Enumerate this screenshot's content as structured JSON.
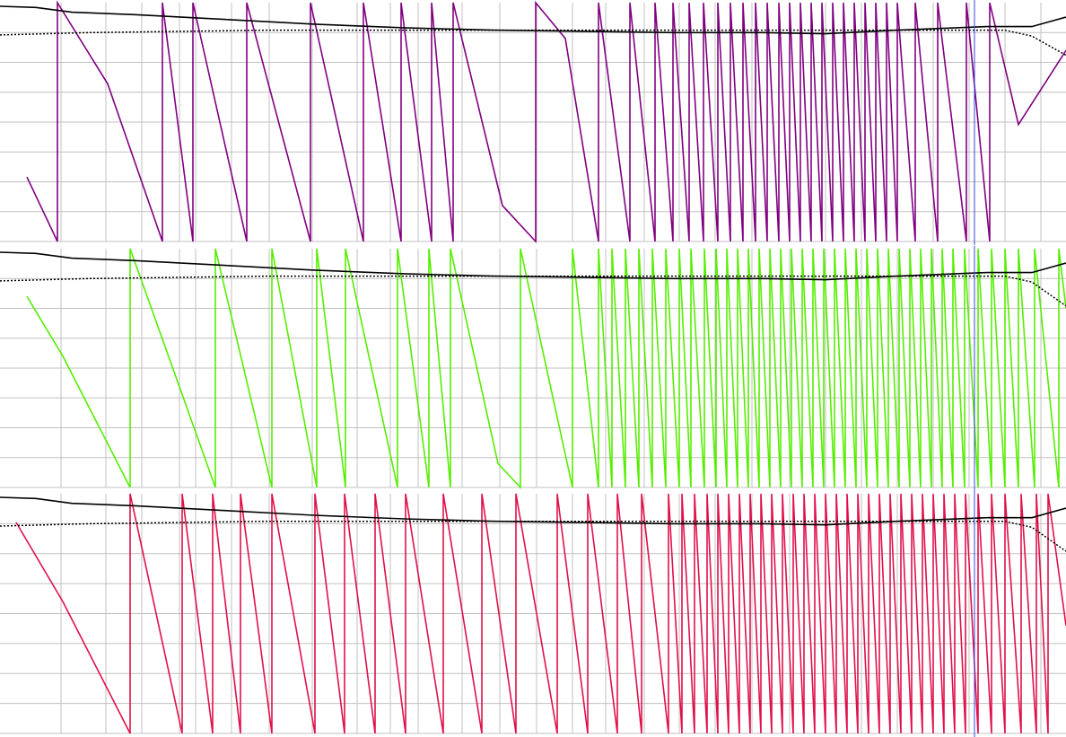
{
  "chart_data": [
    {
      "type": "line",
      "xlim": [
        0,
        1188
      ],
      "ylim": [
        0,
        1
      ],
      "grid": true,
      "grid_color": "#c0c0c0",
      "xticks": [
        68,
        118,
        158,
        200,
        218,
        258,
        300,
        348,
        398,
        435,
        466,
        515,
        557,
        598,
        638,
        675,
        718,
        757,
        797,
        838,
        880,
        920,
        960,
        1000,
        1040,
        1080,
        1120,
        1160
      ],
      "yticks": [
        0,
        0.125,
        0.25,
        0.375,
        0.5,
        0.625,
        0.75,
        0.875
      ],
      "vline": 1086,
      "vline_color": "#3344dd",
      "series": [
        {
          "color": "#800080",
          "style": "solid",
          "x": [
            30,
            64,
            64,
            120,
            181,
            181,
            215,
            215,
            275,
            275,
            346,
            346,
            405,
            405,
            447,
            447,
            481,
            481,
            505,
            505,
            560,
            597,
            597,
            630,
            667,
            667,
            702,
            702,
            730,
            730,
            750,
            750,
            768,
            768,
            784,
            784,
            800,
            800,
            814,
            814,
            828,
            828,
            842,
            842,
            855,
            855,
            868,
            868,
            880,
            880,
            892,
            892,
            904,
            904,
            916,
            916,
            928,
            928,
            940,
            940,
            952,
            952,
            964,
            964,
            976,
            976,
            988,
            988,
            1000,
            1000,
            1020,
            1020,
            1045,
            1045,
            1077,
            1077,
            1103,
            1103,
            1135,
            1188
          ],
          "values": [
            0.27,
            0,
            1,
            0.66,
            0,
            1,
            0,
            1,
            0,
            1,
            0,
            1,
            0,
            1,
            0,
            1,
            0,
            1,
            0,
            1,
            0.15,
            0,
            1,
            0.85,
            0,
            1,
            0,
            1,
            0,
            1,
            0,
            1,
            0,
            1,
            0,
            1,
            0,
            1,
            0,
            1,
            0,
            1,
            0,
            1,
            0,
            1,
            0,
            1,
            0,
            1,
            0,
            1,
            0,
            1,
            0,
            1,
            0,
            1,
            0,
            1,
            0,
            1,
            0,
            1,
            0,
            1,
            0,
            1,
            0,
            1,
            0,
            1,
            0,
            1,
            0,
            1,
            0,
            1,
            0.49,
            0.8
          ]
        },
        {
          "color": "#000000",
          "style": "solid",
          "x": [
            0,
            40,
            80,
            150,
            250,
            350,
            450,
            550,
            650,
            750,
            850,
            920,
            1000,
            1100,
            1150,
            1188
          ],
          "values": [
            0.985,
            0.98,
            0.96,
            0.95,
            0.93,
            0.91,
            0.895,
            0.885,
            0.88,
            0.875,
            0.875,
            0.87,
            0.885,
            0.9,
            0.9,
            0.94
          ]
        },
        {
          "color": "#000000",
          "style": "dotted",
          "x": [
            0,
            100,
            300,
            1120,
            1150,
            1188
          ],
          "values": [
            0.865,
            0.875,
            0.885,
            0.885,
            0.86,
            0.78
          ]
        }
      ]
    },
    {
      "type": "line",
      "xlim": [
        0,
        1188
      ],
      "ylim": [
        0,
        1
      ],
      "grid": true,
      "grid_color": "#c0c0c0",
      "xticks": [
        68,
        118,
        158,
        200,
        218,
        258,
        300,
        348,
        398,
        435,
        466,
        515,
        557,
        598,
        638,
        675,
        718,
        757,
        797,
        838,
        880,
        920,
        960,
        1000,
        1040,
        1080,
        1120,
        1160
      ],
      "yticks": [
        0,
        0.125,
        0.25,
        0.375,
        0.5,
        0.625,
        0.75,
        0.875
      ],
      "vline": 1086,
      "vline_color": "#3344dd",
      "series": [
        {
          "color": "#55ee00",
          "style": "solid",
          "x": [
            30,
            70,
            145,
            145,
            240,
            240,
            303,
            303,
            353,
            353,
            385,
            385,
            443,
            443,
            478,
            478,
            502,
            502,
            555,
            580,
            580,
            638,
            638,
            667,
            667,
            682,
            682,
            697,
            697,
            712,
            712,
            727,
            727,
            742,
            742,
            757,
            757,
            770,
            770,
            785,
            785,
            798,
            798,
            810,
            810,
            822,
            822,
            834,
            834,
            846,
            846,
            858,
            858,
            870,
            870,
            882,
            882,
            894,
            894,
            906,
            906,
            918,
            918,
            930,
            930,
            942,
            942,
            954,
            954,
            966,
            966,
            978,
            978,
            990,
            990,
            1002,
            1002,
            1014,
            1014,
            1026,
            1026,
            1038,
            1038,
            1050,
            1050,
            1062,
            1062,
            1075,
            1075,
            1090,
            1090,
            1105,
            1105,
            1120,
            1120,
            1135,
            1135,
            1153,
            1153,
            1180,
            1180,
            1188
          ],
          "values": [
            0.8,
            0.55,
            0,
            1,
            0,
            1,
            0,
            1,
            0,
            1,
            0,
            1,
            0,
            1,
            0,
            1,
            0,
            1,
            0.1,
            0,
            1,
            0,
            1,
            0,
            1,
            0,
            1,
            0,
            1,
            0,
            1,
            0,
            1,
            0,
            1,
            0,
            1,
            0,
            1,
            0,
            1,
            0,
            1,
            0,
            1,
            0,
            1,
            0,
            1,
            0,
            1,
            0,
            1,
            0,
            1,
            0,
            1,
            0,
            1,
            0,
            1,
            0,
            1,
            0,
            1,
            0,
            1,
            0,
            1,
            0,
            1,
            0,
            1,
            0,
            1,
            0,
            1,
            0,
            1,
            0,
            1,
            0,
            1,
            0,
            1,
            0,
            1,
            0,
            1,
            0,
            1,
            0,
            1,
            0,
            1,
            0,
            1,
            0,
            1,
            0,
            1,
            0.75
          ]
        },
        {
          "color": "#000000",
          "style": "solid",
          "x": [
            0,
            40,
            80,
            150,
            250,
            350,
            450,
            550,
            650,
            750,
            850,
            920,
            1000,
            1100,
            1150,
            1188
          ],
          "values": [
            0.985,
            0.98,
            0.96,
            0.95,
            0.93,
            0.91,
            0.895,
            0.885,
            0.88,
            0.875,
            0.875,
            0.87,
            0.885,
            0.9,
            0.9,
            0.94
          ]
        },
        {
          "color": "#000000",
          "style": "dotted",
          "x": [
            0,
            100,
            300,
            1120,
            1150,
            1188
          ],
          "values": [
            0.865,
            0.875,
            0.885,
            0.885,
            0.86,
            0.76
          ]
        }
      ]
    },
    {
      "type": "line",
      "xlim": [
        0,
        1188
      ],
      "ylim": [
        0,
        1
      ],
      "grid": true,
      "grid_color": "#c0c0c0",
      "xticks": [
        68,
        118,
        158,
        200,
        218,
        258,
        300,
        348,
        398,
        435,
        466,
        515,
        557,
        598,
        638,
        675,
        718,
        757,
        797,
        838,
        880,
        920,
        960,
        1000,
        1040,
        1080,
        1120,
        1160
      ],
      "yticks": [
        0,
        0.125,
        0.25,
        0.375,
        0.5,
        0.625,
        0.75,
        0.875
      ],
      "vline": 1086,
      "vline_color": "#3344dd",
      "series": [
        {
          "color": "#e0104a",
          "style": "solid",
          "x": [
            18,
            70,
            145,
            145,
            203,
            203,
            237,
            237,
            268,
            268,
            303,
            303,
            351,
            351,
            384,
            384,
            418,
            418,
            452,
            452,
            494,
            494,
            537,
            537,
            575,
            575,
            621,
            621,
            655,
            655,
            688,
            688,
            715,
            715,
            745,
            745,
            760,
            760,
            774,
            774,
            788,
            788,
            800,
            800,
            812,
            812,
            824,
            824,
            836,
            836,
            848,
            848,
            860,
            860,
            872,
            872,
            884,
            884,
            896,
            896,
            908,
            908,
            920,
            920,
            932,
            932,
            944,
            944,
            956,
            956,
            968,
            968,
            980,
            980,
            992,
            992,
            1004,
            1004,
            1016,
            1016,
            1028,
            1028,
            1040,
            1040,
            1052,
            1052,
            1064,
            1064,
            1076,
            1076,
            1090,
            1090,
            1105,
            1105,
            1120,
            1120,
            1138,
            1138,
            1155,
            1155,
            1168,
            1168,
            1188
          ],
          "values": [
            0.88,
            0.55,
            0,
            1,
            0,
            1,
            0,
            1,
            0,
            1,
            0,
            1,
            0,
            1,
            0,
            1,
            0,
            1,
            0,
            1,
            0,
            1,
            0,
            1,
            0,
            1,
            0,
            1,
            0,
            1,
            0,
            1,
            0,
            1,
            0,
            1,
            0,
            1,
            0,
            1,
            0,
            1,
            0,
            1,
            0,
            1,
            0,
            1,
            0,
            1,
            0,
            1,
            0,
            1,
            0,
            1,
            0,
            1,
            0,
            1,
            0,
            1,
            0,
            1,
            0,
            1,
            0,
            1,
            0,
            1,
            0,
            1,
            0,
            1,
            0,
            1,
            0,
            1,
            0,
            1,
            0,
            1,
            0,
            1,
            0,
            1,
            0,
            1,
            0,
            1,
            0,
            1,
            0,
            1,
            0,
            1,
            0,
            1,
            0,
            1,
            0,
            1,
            0.45
          ]
        },
        {
          "color": "#000000",
          "style": "solid",
          "x": [
            0,
            40,
            80,
            150,
            250,
            350,
            450,
            550,
            650,
            750,
            850,
            920,
            1000,
            1100,
            1150,
            1188
          ],
          "values": [
            0.985,
            0.98,
            0.96,
            0.95,
            0.93,
            0.91,
            0.895,
            0.885,
            0.88,
            0.875,
            0.875,
            0.87,
            0.885,
            0.9,
            0.9,
            0.94
          ]
        },
        {
          "color": "#000000",
          "style": "dotted",
          "x": [
            0,
            100,
            300,
            1120,
            1150,
            1188
          ],
          "values": [
            0.865,
            0.875,
            0.885,
            0.885,
            0.86,
            0.76
          ]
        }
      ]
    }
  ]
}
